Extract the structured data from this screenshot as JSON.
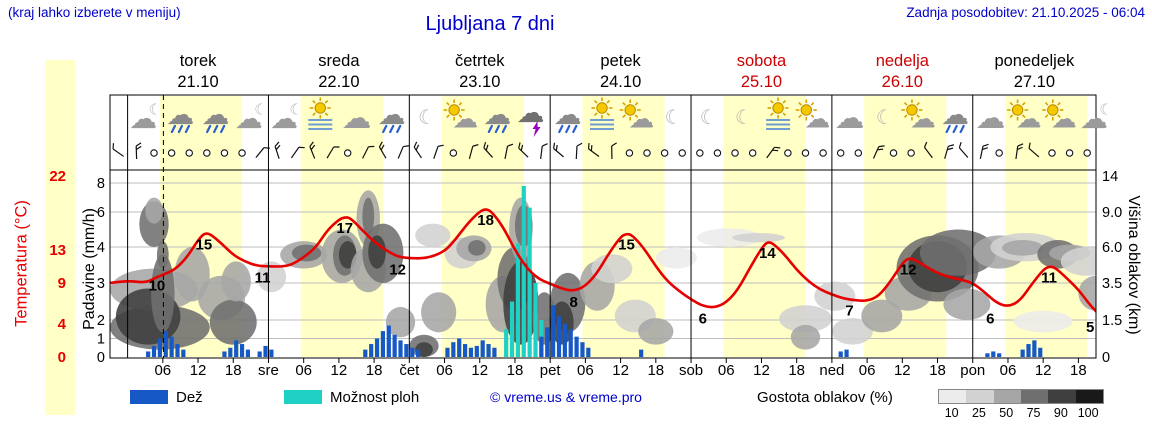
{
  "header": {
    "hint": "(kraj lahko izberete v meniju)",
    "title": "Ljubljana 7 dni",
    "updated": "Zadnja posodobitev: 21.10.2025 - 06:04"
  },
  "days": [
    {
      "name": "torek",
      "date": "21.10",
      "weekend": false
    },
    {
      "name": "sreda",
      "date": "22.10",
      "weekend": false
    },
    {
      "name": "četrtek",
      "date": "23.10",
      "weekend": false
    },
    {
      "name": "petek",
      "date": "24.10",
      "weekend": false
    },
    {
      "name": "sobota",
      "date": "25.10",
      "weekend": true
    },
    {
      "name": "nedelja",
      "date": "26.10",
      "weekend": true
    },
    {
      "name": "ponedeljek",
      "date": "27.10",
      "weekend": false
    }
  ],
  "axes": {
    "temp_label": "Temperatura (°C)",
    "precip_label": "Padavine (mm/h)",
    "cloud_label": "Višina oblakov (km)",
    "temp_ticks": [
      22,
      13,
      9,
      4,
      0
    ],
    "precip_ticks": [
      8,
      6,
      4,
      3,
      2,
      1,
      0
    ],
    "cloud_ticks": [
      [
        "14",
        14
      ],
      [
        "9.0",
        9
      ],
      [
        "6.0",
        6
      ],
      [
        "3.5",
        3.5
      ],
      [
        "1.5",
        1.5
      ],
      [
        "0",
        0
      ]
    ],
    "time_labels": [
      "06",
      "12",
      "18",
      "sre",
      "06",
      "12",
      "18",
      "čet",
      "06",
      "12",
      "18",
      "pet",
      "06",
      "12",
      "18",
      "sob",
      "06",
      "12",
      "18",
      "ned",
      "06",
      "12",
      "18",
      "pon",
      "06",
      "12",
      "18"
    ]
  },
  "legend": {
    "rain_label": "Dež",
    "shower_label": "Možnost ploh",
    "copyright": "© vreme.us & vreme.pro",
    "cloud_density_label": "Gostota oblakov (%)",
    "density_values": [
      "10",
      "25",
      "50",
      "75",
      "90",
      "100"
    ]
  },
  "colors": {
    "rain": "#1659c6",
    "shower": "#1fd0c5",
    "temp": "#e80000",
    "day_band": "#ffffc6",
    "title_blue": "#0000cc",
    "weekend_red": "#cc0000",
    "density_scale": [
      "#ececec",
      "#d2d2d2",
      "#a6a6a6",
      "#6f6f6f",
      "#3f3f3f",
      "#191919"
    ]
  },
  "chart_data": {
    "type": "meteogram",
    "hours_span": 168,
    "now_line_hour": 6.1,
    "temperature": {
      "unit": "°C",
      "series": [
        [
          -3,
          9
        ],
        [
          0,
          9.3
        ],
        [
          3,
          9
        ],
        [
          5,
          9.7
        ],
        [
          6,
          10
        ],
        [
          8,
          10.6
        ],
        [
          10,
          12
        ],
        [
          12,
          14.2
        ],
        [
          13,
          15
        ],
        [
          14,
          15
        ],
        [
          16,
          13.8
        ],
        [
          18,
          12.4
        ],
        [
          20,
          11.6
        ],
        [
          22,
          11.1
        ],
        [
          24,
          11
        ],
        [
          27,
          11
        ],
        [
          29,
          11.6
        ],
        [
          32,
          13.2
        ],
        [
          34,
          15.4
        ],
        [
          36,
          16.7
        ],
        [
          37,
          17
        ],
        [
          38,
          16.9
        ],
        [
          40,
          15.4
        ],
        [
          42,
          14
        ],
        [
          44,
          13
        ],
        [
          46,
          12.2
        ],
        [
          48,
          12
        ],
        [
          51,
          12
        ],
        [
          54,
          12.8
        ],
        [
          56,
          14.4
        ],
        [
          58,
          16.3
        ],
        [
          60,
          17.7
        ],
        [
          61,
          18
        ],
        [
          62,
          17.7
        ],
        [
          64,
          15.8
        ],
        [
          66,
          13
        ],
        [
          68,
          10.8
        ],
        [
          70,
          9.5
        ],
        [
          72,
          8.9
        ],
        [
          74,
          8.3
        ],
        [
          76,
          8
        ],
        [
          78,
          8.6
        ],
        [
          80,
          10.2
        ],
        [
          82,
          12.6
        ],
        [
          84,
          14.6
        ],
        [
          85,
          15
        ],
        [
          86,
          14.8
        ],
        [
          88,
          13.2
        ],
        [
          90,
          11
        ],
        [
          92,
          9.2
        ],
        [
          94,
          8
        ],
        [
          96,
          7
        ],
        [
          98,
          6.2
        ],
        [
          100,
          6
        ],
        [
          102,
          6.6
        ],
        [
          104,
          8.2
        ],
        [
          106,
          10.8
        ],
        [
          108,
          13.2
        ],
        [
          109,
          14
        ],
        [
          110,
          13.8
        ],
        [
          112,
          12.4
        ],
        [
          114,
          10.6
        ],
        [
          116,
          9.2
        ],
        [
          118,
          8.2
        ],
        [
          120,
          7.6
        ],
        [
          122,
          7.1
        ],
        [
          124,
          6.9
        ],
        [
          126,
          6.8
        ],
        [
          128,
          7.4
        ],
        [
          130,
          9.2
        ],
        [
          132,
          11.4
        ],
        [
          133,
          12
        ],
        [
          134,
          11.9
        ],
        [
          136,
          11
        ],
        [
          138,
          10.2
        ],
        [
          140,
          9.7
        ],
        [
          142,
          9.4
        ],
        [
          144,
          9
        ],
        [
          146,
          7.9
        ],
        [
          148,
          6.6
        ],
        [
          150,
          6.1
        ],
        [
          152,
          6.8
        ],
        [
          154,
          8.8
        ],
        [
          156,
          10.6
        ],
        [
          157,
          11
        ],
        [
          158,
          10.9
        ],
        [
          160,
          9.6
        ],
        [
          162,
          8.2
        ],
        [
          164,
          6.3
        ],
        [
          165.5,
          5.2
        ]
      ],
      "labels": [
        [
          5,
          10
        ],
        [
          13,
          15
        ],
        [
          23,
          11
        ],
        [
          37,
          17
        ],
        [
          46,
          12
        ],
        [
          61,
          18
        ],
        [
          76,
          8
        ],
        [
          85,
          15
        ],
        [
          98,
          6
        ],
        [
          109,
          14
        ],
        [
          123,
          7
        ],
        [
          133,
          12
        ],
        [
          147,
          6
        ],
        [
          157,
          11
        ],
        [
          164,
          5
        ]
      ]
    },
    "precip_rain": [
      [
        3,
        0.3
      ],
      [
        4,
        0.6
      ],
      [
        5,
        1.0
      ],
      [
        6,
        1.4
      ],
      [
        7,
        1.1
      ],
      [
        8,
        0.7
      ],
      [
        9,
        0.4
      ],
      [
        16,
        0.3
      ],
      [
        17,
        0.5
      ],
      [
        18,
        0.9
      ],
      [
        19,
        0.7
      ],
      [
        20,
        0.4
      ],
      [
        22,
        0.3
      ],
      [
        23,
        0.6
      ],
      [
        24,
        0.4
      ],
      [
        40,
        0.4
      ],
      [
        41,
        0.7
      ],
      [
        42,
        1.0
      ],
      [
        43,
        1.4
      ],
      [
        44,
        1.7
      ],
      [
        45,
        1.2
      ],
      [
        46,
        0.9
      ],
      [
        47,
        0.7
      ],
      [
        48,
        0.5
      ],
      [
        49,
        0.4
      ],
      [
        54,
        0.5
      ],
      [
        55,
        0.8
      ],
      [
        56,
        1.0
      ],
      [
        57,
        0.7
      ],
      [
        58,
        0.5
      ],
      [
        59,
        0.6
      ],
      [
        60,
        0.9
      ],
      [
        61,
        0.7
      ],
      [
        62,
        0.5
      ],
      [
        70,
        1.1
      ],
      [
        71,
        1.6
      ],
      [
        72,
        2.4
      ],
      [
        73,
        2.1
      ],
      [
        74,
        1.8
      ],
      [
        75,
        1.5
      ],
      [
        76,
        1.1
      ],
      [
        77,
        0.8
      ],
      [
        78,
        0.5
      ],
      [
        87,
        0.4
      ],
      [
        121,
        0.3
      ],
      [
        122,
        0.4
      ],
      [
        146,
        0.2
      ],
      [
        147,
        0.3
      ],
      [
        148,
        0.2
      ],
      [
        152,
        0.4
      ],
      [
        153,
        0.7
      ],
      [
        154,
        0.9
      ],
      [
        155,
        0.5
      ]
    ],
    "precip_showers": [
      [
        64,
        1.5
      ],
      [
        65,
        2.5
      ],
      [
        66,
        4.2
      ],
      [
        67,
        7.8
      ],
      [
        68,
        6.3
      ],
      [
        69,
        3.0
      ],
      [
        70,
        2.0
      ]
    ],
    "cloud_patches": [
      [
        -3,
        14,
        0.3,
        2.3,
        75
      ],
      [
        -3,
        12,
        2,
        4.5,
        50
      ],
      [
        -2,
        9,
        0.5,
        3.2,
        90
      ],
      [
        2,
        7,
        6,
        10.5,
        75
      ],
      [
        3,
        6,
        8,
        11,
        50
      ],
      [
        4,
        8,
        1,
        5.5,
        75
      ],
      [
        5,
        7,
        4.5,
        6.5,
        75
      ],
      [
        8,
        14,
        2.5,
        6,
        50
      ],
      [
        12,
        20,
        1.5,
        4,
        50
      ],
      [
        14,
        22,
        0.5,
        2.6,
        75
      ],
      [
        16,
        21,
        2.5,
        5,
        50
      ],
      [
        22,
        27,
        3,
        5,
        25
      ],
      [
        26,
        34,
        4.5,
        6.5,
        50
      ],
      [
        28,
        33,
        5,
        6.2,
        75
      ],
      [
        33,
        40,
        3.5,
        7.5,
        50
      ],
      [
        35,
        39,
        4,
        7,
        75
      ],
      [
        36,
        39,
        4.5,
        6.5,
        90
      ],
      [
        38,
        44,
        3,
        6,
        50
      ],
      [
        39,
        43,
        6,
        12,
        50
      ],
      [
        40,
        42,
        7,
        11,
        75
      ],
      [
        40,
        47,
        3.5,
        8,
        75
      ],
      [
        41,
        44,
        4.5,
        7,
        90
      ],
      [
        44,
        49,
        0.8,
        2.2,
        50
      ],
      [
        48,
        53,
        0,
        0.9,
        75
      ],
      [
        49,
        52,
        0,
        0.6,
        90
      ],
      [
        50,
        56,
        1,
        3,
        50
      ],
      [
        49,
        55,
        6,
        8,
        25
      ],
      [
        54,
        60,
        4.5,
        6.8,
        25
      ],
      [
        56,
        62,
        5,
        7,
        50
      ],
      [
        58,
        61,
        5.4,
        6.6,
        75
      ],
      [
        61,
        67,
        1,
        4,
        50
      ],
      [
        63,
        69,
        2,
        6,
        75
      ],
      [
        64,
        70,
        0.5,
        5,
        90
      ],
      [
        65,
        69,
        5,
        11,
        50
      ],
      [
        66,
        69,
        6,
        10,
        75
      ],
      [
        69,
        73,
        0.5,
        3,
        75
      ],
      [
        72,
        78,
        1,
        4.2,
        75
      ],
      [
        72,
        76,
        0.5,
        2.5,
        90
      ],
      [
        77,
        83,
        2,
        5,
        50
      ],
      [
        79,
        86,
        3.5,
        5.5,
        25
      ],
      [
        83,
        90,
        1,
        2.6,
        25
      ],
      [
        87,
        93,
        0.5,
        1.6,
        50
      ],
      [
        90,
        97,
        4.5,
        6,
        10
      ],
      [
        97,
        108,
        6,
        7.6,
        10
      ],
      [
        103,
        112,
        6.4,
        7.2,
        25
      ],
      [
        111,
        120,
        1,
        2.3,
        25
      ],
      [
        113,
        118,
        0.3,
        1.3,
        50
      ],
      [
        117,
        124,
        2,
        3.6,
        25
      ],
      [
        120,
        127,
        0.5,
        1.6,
        25
      ],
      [
        125,
        132,
        1,
        2.6,
        50
      ],
      [
        129,
        137,
        2,
        4,
        50
      ],
      [
        131,
        145,
        2.5,
        7,
        75
      ],
      [
        133,
        143,
        3,
        6.5,
        90
      ],
      [
        135,
        148,
        4,
        7.5,
        75
      ],
      [
        139,
        147,
        1.5,
        3.2,
        50
      ],
      [
        144,
        153,
        4.5,
        7,
        50
      ],
      [
        147,
        159,
        5,
        7.2,
        25
      ],
      [
        149,
        156,
        5.4,
        6.6,
        50
      ],
      [
        155,
        162,
        4.5,
        6.6,
        75
      ],
      [
        157,
        164,
        5,
        6.2,
        50
      ],
      [
        159,
        168,
        4,
        6,
        25
      ],
      [
        162,
        168,
        2,
        4,
        50
      ],
      [
        151,
        161,
        1,
        2,
        10
      ]
    ],
    "wind": [
      "bboooooo",
      "bbbbbobb",
      "bbbobbbb",
      "bbbbbooo",
      "oooooboo",
      "oooboobb",
      "bbobbooo"
    ],
    "icons": [
      [
        "cloud-moon",
        "cloud-rain",
        "cloud-rain",
        "cloud-moon"
      ],
      [
        "cloud-moon",
        "fog-sun",
        "cloud",
        "cloud-rain"
      ],
      [
        "moon",
        "sun-cloud",
        "cloud-rain",
        "storm"
      ],
      [
        "cloud-rain",
        "fog-sun",
        "sun-cloud",
        "moon"
      ],
      [
        "moon",
        "moon",
        "fog-sun",
        "sun-cloud"
      ],
      [
        "cloud",
        "moon",
        "sun-cloud",
        "cloud-rain"
      ],
      [
        "cloud",
        "sun-cloud",
        "sun-cloud",
        "cloud-moon"
      ]
    ]
  }
}
